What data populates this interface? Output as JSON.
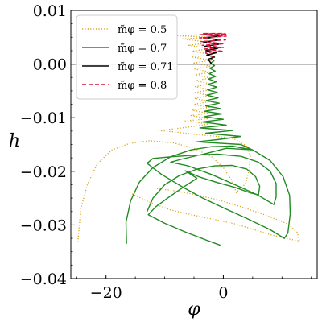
{
  "chart_data": {
    "type": "line",
    "title": "",
    "xlabel": "φ",
    "ylabel": "h",
    "xlim": [
      -26,
      16
    ],
    "ylim": [
      -0.04,
      0.01
    ],
    "xticks": [
      -20,
      0
    ],
    "xtick_labels": [
      "−20",
      "0"
    ],
    "yticks": [
      0.01,
      0.0,
      -0.01,
      -0.02,
      -0.03,
      -0.04
    ],
    "ytick_labels": [
      "0.01",
      "0.00",
      "−0.01",
      "−0.02",
      "−0.03",
      "−0.04"
    ],
    "grid": false,
    "legend_position": "top-left",
    "reference_line": {
      "y": 0.0,
      "color": "#000000"
    },
    "series": [
      {
        "name": "m̃φ = 0.5",
        "color": "#DAA520",
        "style": "dotted",
        "points": [
          [
            -24.8,
            -0.0332
          ],
          [
            -24.3,
            -0.027
          ],
          [
            -23.2,
            -0.0225
          ],
          [
            -21.5,
            -0.0186
          ],
          [
            -19.0,
            -0.016
          ],
          [
            -16.0,
            -0.0148
          ],
          [
            -12.5,
            -0.0143
          ],
          [
            -8.5,
            -0.0147
          ],
          [
            -5.0,
            -0.0157
          ],
          [
            -2.0,
            -0.0173
          ],
          [
            0.0,
            -0.0193
          ],
          [
            1.5,
            -0.0218
          ],
          [
            2.2,
            -0.024
          ],
          [
            3.8,
            -0.0223
          ],
          [
            4.4,
            -0.0197
          ],
          [
            4.6,
            -0.0172
          ],
          [
            4.0,
            -0.0153
          ],
          [
            1.8,
            -0.0139
          ],
          [
            -1.0,
            -0.0135
          ],
          [
            -5.0,
            -0.0131
          ],
          [
            -8.0,
            -0.0127
          ],
          [
            -11.0,
            -0.0124
          ],
          [
            -8.5,
            -0.0121
          ],
          [
            -5.0,
            -0.0116
          ],
          [
            -2.5,
            -0.0112
          ],
          [
            -6.5,
            -0.0106
          ],
          [
            -2.5,
            -0.0102
          ],
          [
            -5.5,
            -0.0096
          ],
          [
            -2.5,
            -0.0092
          ],
          [
            -5.3,
            -0.0086
          ],
          [
            -2.4,
            -0.0081
          ],
          [
            -5.0,
            -0.0075
          ],
          [
            -2.4,
            -0.007
          ],
          [
            -4.9,
            -0.0064
          ],
          [
            -2.3,
            -0.0059
          ],
          [
            -4.8,
            -0.0053
          ],
          [
            -2.3,
            -0.0048
          ],
          [
            -4.8,
            -0.0042
          ],
          [
            -2.2,
            -0.0037
          ],
          [
            -4.8,
            -0.0031
          ],
          [
            -2.2,
            -0.0026
          ],
          [
            -4.8,
            -0.002
          ],
          [
            -2.2,
            -0.0015
          ],
          [
            -5.0,
            -0.0009
          ],
          [
            -2.1,
            -0.0004
          ],
          [
            -5.0,
            0.0002
          ],
          [
            -2.1,
            0.0007
          ],
          [
            -5.2,
            0.0013
          ],
          [
            -2.0,
            0.0018
          ],
          [
            -5.4,
            0.0024
          ],
          [
            -2.0,
            0.0029
          ],
          [
            -6.0,
            0.0035
          ],
          [
            -2.0,
            0.004
          ],
          [
            -7.0,
            0.0047
          ],
          [
            -2.0,
            0.005
          ],
          [
            -8.5,
            0.0053
          ],
          [
            -2.0,
            0.0055
          ]
        ],
        "loop_points": [
          [
            -16.0,
            -0.024
          ],
          [
            -12.5,
            -0.0258
          ],
          [
            -9.0,
            -0.0272
          ],
          [
            -5.0,
            -0.0282
          ],
          [
            -1.5,
            -0.029
          ],
          [
            2.0,
            -0.0298
          ],
          [
            5.0,
            -0.0308
          ],
          [
            8.0,
            -0.0318
          ],
          [
            11.0,
            -0.0326
          ],
          [
            13.0,
            -0.033
          ],
          [
            12.6,
            -0.0314
          ],
          [
            11.0,
            -0.0298
          ],
          [
            7.0,
            -0.0281
          ],
          [
            3.0,
            -0.0266
          ],
          [
            -1.0,
            -0.0253
          ],
          [
            -5.0,
            -0.0243
          ],
          [
            -8.5,
            -0.0236
          ],
          [
            -11.5,
            -0.0232
          ]
        ]
      },
      {
        "name": "m̃φ = 0.7",
        "color": "#228B22",
        "style": "solid",
        "points": [
          [
            -16.5,
            -0.0335
          ],
          [
            -16.6,
            -0.0295
          ],
          [
            -15.8,
            -0.0255
          ],
          [
            -14.3,
            -0.022
          ],
          [
            -12.0,
            -0.0193
          ],
          [
            -9.0,
            -0.0173
          ],
          [
            -5.5,
            -0.016
          ],
          [
            -2.0,
            -0.0154
          ],
          [
            1.5,
            -0.0153
          ],
          [
            5.0,
            -0.016
          ],
          [
            8.0,
            -0.018
          ],
          [
            10.2,
            -0.021
          ],
          [
            11.3,
            -0.0245
          ],
          [
            11.4,
            -0.028
          ],
          [
            11.0,
            -0.0315
          ],
          [
            10.4,
            -0.0325
          ],
          [
            8.0,
            -0.0309
          ],
          [
            4.0,
            -0.0288
          ],
          [
            0.0,
            -0.0268
          ],
          [
            -3.5,
            -0.025
          ],
          [
            -7.0,
            -0.0229
          ],
          [
            -10.5,
            -0.0206
          ],
          [
            -13.0,
            -0.0185
          ],
          [
            -12.0,
            -0.0176
          ],
          [
            -9.0,
            -0.0173
          ],
          [
            -5.0,
            -0.017
          ],
          [
            -1.0,
            -0.0168
          ],
          [
            3.0,
            -0.0172
          ],
          [
            6.0,
            -0.0183
          ],
          [
            8.0,
            -0.02
          ],
          [
            9.0,
            -0.0223
          ],
          [
            9.0,
            -0.0248
          ],
          [
            8.6,
            -0.0262
          ],
          [
            6.0,
            -0.0245
          ],
          [
            2.0,
            -0.0225
          ],
          [
            -2.0,
            -0.0206
          ],
          [
            -6.0,
            -0.019
          ],
          [
            -9.0,
            -0.0183
          ],
          [
            -7.0,
            -0.0177
          ],
          [
            -3.0,
            -0.0167
          ],
          [
            0.5,
            -0.0157
          ],
          [
            5.0,
            -0.016
          ],
          [
            3.0,
            -0.015
          ],
          [
            -4.5,
            -0.0145
          ],
          [
            -1.0,
            -0.0141
          ],
          [
            3.0,
            -0.0135
          ],
          [
            -3.0,
            -0.0129
          ],
          [
            1.5,
            -0.0124
          ],
          [
            -4.0,
            -0.0119
          ],
          [
            0.5,
            -0.0114
          ],
          [
            -3.5,
            -0.0108
          ],
          [
            0.0,
            -0.0103
          ],
          [
            -3.3,
            -0.0098
          ],
          [
            -0.3,
            -0.0093
          ],
          [
            -3.2,
            -0.0088
          ],
          [
            -0.5,
            -0.0083
          ],
          [
            -3.0,
            -0.0078
          ],
          [
            -0.7,
            -0.0073
          ],
          [
            -2.9,
            -0.0068
          ],
          [
            -0.9,
            -0.0063
          ],
          [
            -2.8,
            -0.0058
          ],
          [
            -1.0,
            -0.0053
          ],
          [
            -2.7,
            -0.0048
          ],
          [
            -1.1,
            -0.0043
          ],
          [
            -2.6,
            -0.0038
          ],
          [
            -1.2,
            -0.0033
          ],
          [
            -2.5,
            -0.0028
          ],
          [
            -1.3,
            -0.0023
          ],
          [
            -2.4,
            -0.0018
          ],
          [
            -1.4,
            -0.0013
          ],
          [
            -2.3,
            -0.0008
          ],
          [
            -1.5,
            -0.0003
          ],
          [
            -2.2,
            0.0002
          ],
          [
            -1.6,
            0.0006
          ],
          [
            -2.1,
            0.001
          ],
          [
            -1.7,
            0.0013
          ],
          [
            -1.9,
            0.0015
          ]
        ],
        "loop_points": [
          [
            -13.0,
            -0.0275
          ],
          [
            -12.0,
            -0.025
          ],
          [
            -10.0,
            -0.0225
          ],
          [
            -7.5,
            -0.0208
          ],
          [
            -4.5,
            -0.0196
          ],
          [
            -1.5,
            -0.019
          ],
          [
            1.5,
            -0.0189
          ],
          [
            4.0,
            -0.0196
          ],
          [
            5.5,
            -0.021
          ],
          [
            6.2,
            -0.0228
          ],
          [
            6.0,
            -0.0244
          ],
          [
            4.5,
            -0.024
          ],
          [
            2.0,
            -0.023
          ],
          [
            -1.0,
            -0.0221
          ],
          [
            -4.0,
            -0.0211
          ],
          [
            -6.5,
            -0.0199
          ],
          [
            -4.5,
            -0.0213
          ],
          [
            -7.0,
            -0.0231
          ],
          [
            -9.5,
            -0.025
          ],
          [
            -11.5,
            -0.0266
          ],
          [
            -12.8,
            -0.0281
          ],
          [
            -10.0,
            -0.0297
          ],
          [
            -6.5,
            -0.0313
          ],
          [
            -3.0,
            -0.0328
          ],
          [
            -0.5,
            -0.0338
          ]
        ]
      },
      {
        "name": "m̃φ = 0.71",
        "color": "#000000",
        "style": "solid",
        "points": [
          [
            -2.0,
            0.0
          ],
          [
            -2.6,
            0.0009
          ],
          [
            -1.5,
            0.0013
          ],
          [
            -2.8,
            0.0017
          ],
          [
            -1.2,
            0.0021
          ],
          [
            -3.0,
            0.0025
          ],
          [
            -1.0,
            0.0029
          ],
          [
            -3.2,
            0.0033
          ],
          [
            -0.8,
            0.0037
          ],
          [
            -3.4,
            0.0041
          ],
          [
            -0.6,
            0.0045
          ],
          [
            -3.4,
            0.0049
          ],
          [
            -0.6,
            0.0052
          ],
          [
            -3.2,
            0.0055
          ]
        ]
      },
      {
        "name": "m̃φ = 0.8",
        "color": "#DC143C",
        "style": "dashed",
        "points": [
          [
            -1.6,
            0.0012
          ],
          [
            -3.0,
            0.0021
          ],
          [
            -0.2,
            0.0024
          ],
          [
            -3.4,
            0.0028
          ],
          [
            0.0,
            0.0031
          ],
          [
            -3.6,
            0.0035
          ],
          [
            0.2,
            0.0038
          ],
          [
            -3.8,
            0.0042
          ],
          [
            0.4,
            0.0045
          ],
          [
            -4.0,
            0.0049
          ],
          [
            0.5,
            0.0052
          ],
          [
            -4.1,
            0.0055
          ],
          [
            0.6,
            0.0056
          ],
          [
            -3.5,
            0.0057
          ],
          [
            0.3,
            0.0057
          ]
        ]
      }
    ]
  },
  "legend": {
    "items": [
      {
        "label": "m̃φ = 0.5",
        "color": "#DAA520",
        "style": "dotted"
      },
      {
        "label": "m̃φ = 0.7",
        "color": "#228B22",
        "style": "solid"
      },
      {
        "label": "m̃φ = 0.71",
        "color": "#000000",
        "style": "solid"
      },
      {
        "label": "m̃φ = 0.8",
        "color": "#DC143C",
        "style": "dashed"
      }
    ]
  }
}
